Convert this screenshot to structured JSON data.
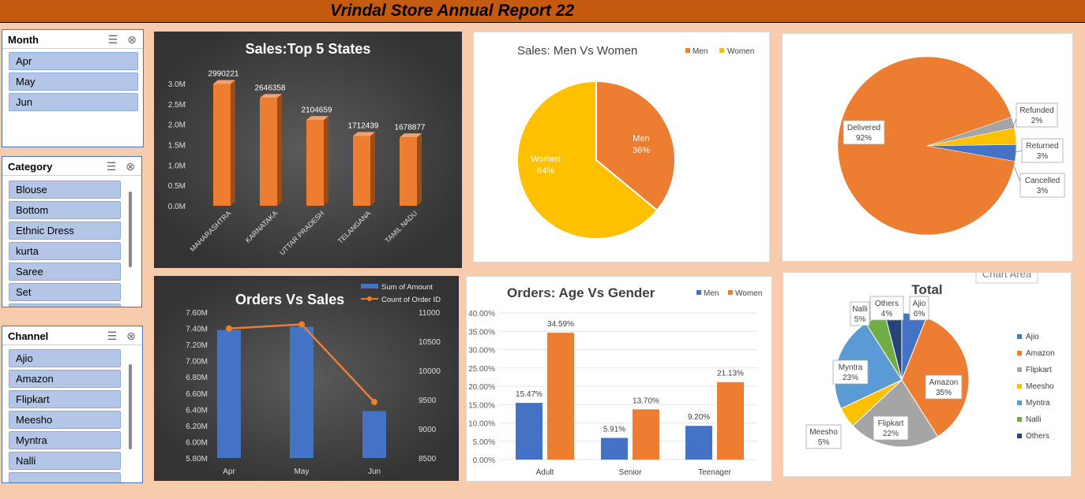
{
  "header": {
    "title": "Vrindal Store Annual Report 22"
  },
  "slicers": {
    "month": {
      "title": "Month",
      "items": [
        "Apr",
        "May",
        "Jun"
      ]
    },
    "category": {
      "title": "Category",
      "items": [
        "Blouse",
        "Bottom",
        "Ethnic Dress",
        "kurta",
        "Saree",
        "Set"
      ]
    },
    "channel": {
      "title": "Channel",
      "items": [
        "Ajio",
        "Amazon",
        "Flipkart",
        "Meesho",
        "Myntra",
        "Nalli"
      ]
    }
  },
  "colors": {
    "accent": "#c55a11",
    "orange": "#ed7d31",
    "blue": "#4472c4",
    "yellow": "#ffc000",
    "gray": "#a5a5a5",
    "slicer_item": "#b4c6e7",
    "background": "#f8cbad"
  },
  "chart_area_tooltip": "Chart Area",
  "chart_data": [
    {
      "id": "states",
      "type": "bar",
      "title": "Sales:Top 5 States",
      "categories": [
        "MAHARASHTRA",
        "KARNATAKA",
        "UTTAR PRADESH",
        "TELANGANA",
        "TAMIL NADU"
      ],
      "values": [
        2990221,
        2646358,
        2104659,
        1712439,
        1678877
      ],
      "ylim": [
        0,
        3000000
      ],
      "ticks": [
        0,
        500000,
        1000000,
        1500000,
        2000000,
        2500000,
        3000000
      ],
      "tick_labels": [
        "0.0M",
        "0.5M",
        "1.0M",
        "1.5M",
        "2.0M",
        "2.5M",
        "3.0M"
      ],
      "data_labels": [
        "2990221",
        "2646358",
        "2104659",
        "1712439",
        "1678877"
      ]
    },
    {
      "id": "gender",
      "type": "pie",
      "title": "Sales: Men Vs Women",
      "legend": [
        "Men",
        "Women"
      ],
      "slices": [
        {
          "name": "Men",
          "value": 36,
          "label": "Men",
          "pct": "36%",
          "color": "#ed7d31"
        },
        {
          "name": "Women",
          "value": 64,
          "label": "Women",
          "pct": "64%",
          "color": "#ffc000"
        }
      ]
    },
    {
      "id": "status",
      "type": "pie",
      "slices": [
        {
          "name": "Delivered",
          "value": 92,
          "label": "Delivered",
          "pct": "92%",
          "color": "#ed7d31"
        },
        {
          "name": "Refunded",
          "value": 2,
          "label": "Refunded",
          "pct": "2%",
          "color": "#a5a5a5"
        },
        {
          "name": "Returned",
          "value": 3,
          "label": "Returned",
          "pct": "3%",
          "color": "#ffc000"
        },
        {
          "name": "Cancelled",
          "value": 3,
          "label": "Cancelled",
          "pct": "3%",
          "color": "#4472c4"
        }
      ]
    },
    {
      "id": "orders_sales",
      "type": "bar",
      "title": "Orders Vs Sales",
      "categories": [
        "Apr",
        "May",
        "Jun"
      ],
      "series": [
        {
          "name": "Sum of Amount",
          "kind": "bar",
          "values": [
            7380000,
            7420000,
            6380000
          ]
        },
        {
          "name": "Count of Order ID",
          "kind": "line",
          "values": [
            10720,
            10790,
            9460
          ]
        }
      ],
      "y_left": {
        "ylim": [
          5800000,
          7600000
        ],
        "ticks": [
          "5.80M",
          "6.00M",
          "6.20M",
          "6.40M",
          "6.60M",
          "6.80M",
          "7.00M",
          "7.20M",
          "7.40M",
          "7.60M"
        ]
      },
      "y_right": {
        "ylim": [
          8500,
          11000
        ],
        "ticks": [
          "8500",
          "9000",
          "9500",
          "10000",
          "10500",
          "11000"
        ]
      }
    },
    {
      "id": "age_gender",
      "type": "bar",
      "title": "Orders: Age Vs Gender",
      "categories": [
        "Adult",
        "Senior",
        "Teenager"
      ],
      "series": [
        {
          "name": "Men",
          "values": [
            15.47,
            5.91,
            9.2
          ],
          "labels": [
            "15.47%",
            "5.91%",
            "9.20%"
          ]
        },
        {
          "name": "Women",
          "values": [
            34.59,
            13.7,
            21.13
          ],
          "labels": [
            "34.59%",
            "13.70%",
            "21.13%"
          ]
        }
      ],
      "ylim": [
        0,
        40
      ],
      "tick_labels": [
        "0.00%",
        "5.00%",
        "10.00%",
        "15.00%",
        "20.00%",
        "25.00%",
        "30.00%",
        "35.00%",
        "40.00%"
      ]
    },
    {
      "id": "channels",
      "type": "pie",
      "title": "Total",
      "slices": [
        {
          "name": "Ajio",
          "value": 6,
          "pct": "6%",
          "color": "#4472c4"
        },
        {
          "name": "Amazon",
          "value": 35,
          "pct": "35%",
          "color": "#ed7d31"
        },
        {
          "name": "Flipkart",
          "value": 22,
          "pct": "22%",
          "color": "#a5a5a5"
        },
        {
          "name": "Meesho",
          "value": 5,
          "pct": "5%",
          "color": "#ffc000"
        },
        {
          "name": "Myntra",
          "value": 23,
          "pct": "23%",
          "color": "#5b9bd5"
        },
        {
          "name": "Nalli",
          "value": 5,
          "pct": "5%",
          "color": "#70ad47"
        },
        {
          "name": "Others",
          "value": 4,
          "pct": "4%",
          "color": "#264478"
        }
      ]
    }
  ]
}
